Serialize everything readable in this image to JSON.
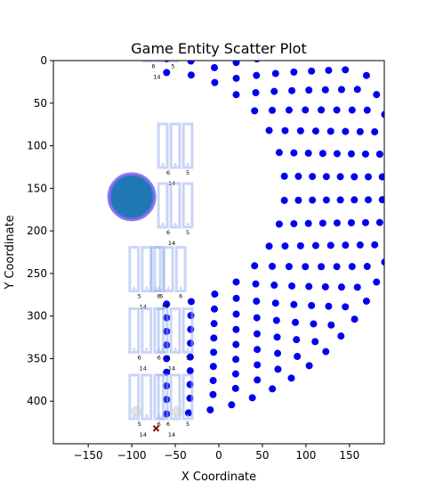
{
  "chart_data": {
    "type": "scatter",
    "title": "Game Entity Scatter Plot",
    "xlabel": "X Coordinate",
    "ylabel": "Y Coordinate",
    "xlim": [
      -190,
      190
    ],
    "ylim": [
      450,
      0
    ],
    "y_inverted": true,
    "xticks": [
      -150,
      -100,
      -50,
      0,
      50,
      100,
      150
    ],
    "yticks": [
      0,
      50,
      100,
      150,
      200,
      250,
      300,
      350,
      400
    ],
    "grid": false,
    "dot_color": "#0000ee",
    "player_color": "#1f77b4",
    "player_ring_color": "#7b68ee",
    "tower_color": "#9db4ef",
    "marker_color": "#8b0000",
    "player": {
      "x": -100,
      "y": 160,
      "r_units": 26
    },
    "marker": {
      "x": -72,
      "y": 432
    },
    "arc": {
      "cx": -60,
      "cy": 150,
      "rings": [
        {
          "r": 265,
          "n": 34
        },
        {
          "r": 248,
          "n": 30
        },
        {
          "r": 232,
          "n": 28
        },
        {
          "r": 216,
          "n": 26
        },
        {
          "r": 200,
          "n": 24
        },
        {
          "r": 184,
          "n": 22
        },
        {
          "r": 168,
          "n": 20
        },
        {
          "r": 152,
          "n": 18
        },
        {
          "r": 136,
          "n": 16
        }
      ]
    },
    "towers": [
      {
        "x": -67,
        "y": -25,
        "labels": [
          "6",
          "5",
          "14"
        ]
      },
      {
        "x": -50,
        "y": 100,
        "labels": [
          "6",
          "5",
          "14"
        ]
      },
      {
        "x": -50,
        "y": 170,
        "labels": [
          "6",
          "5",
          "14"
        ]
      },
      {
        "x": -83,
        "y": 245,
        "labels": [
          "5",
          "6",
          "14"
        ]
      },
      {
        "x": -58,
        "y": 245,
        "labels": [
          "6",
          "6",
          "14"
        ]
      },
      {
        "x": -83,
        "y": 317,
        "labels": [
          "6",
          "6",
          "14"
        ]
      },
      {
        "x": -50,
        "y": 317,
        "labels": [
          "6",
          "5",
          "14"
        ]
      },
      {
        "x": -83,
        "y": 395,
        "labels": [
          "5",
          "6",
          "14"
        ]
      },
      {
        "x": -50,
        "y": 395,
        "labels": [
          "6",
          "5",
          "14"
        ]
      }
    ]
  }
}
